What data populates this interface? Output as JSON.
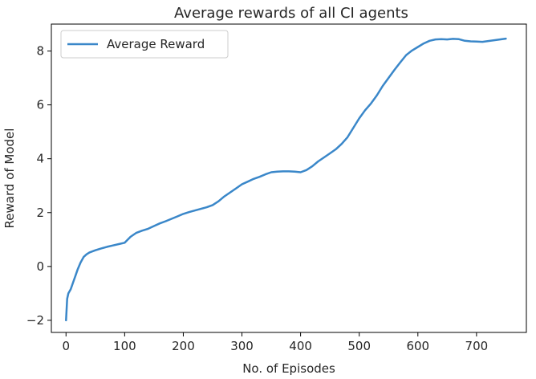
{
  "chart_data": {
    "type": "line",
    "title": "Average rewards of all CI agents",
    "xlabel": "No. of Episodes",
    "ylabel": "Reward of Model",
    "xlim": [
      -25,
      785
    ],
    "ylim": [
      -2.45,
      9.0
    ],
    "xticks": [
      0,
      100,
      200,
      300,
      400,
      500,
      600,
      700
    ],
    "yticks": [
      -2,
      0,
      2,
      4,
      6,
      8
    ],
    "xtick_labels": [
      "0",
      "100",
      "200",
      "300",
      "400",
      "500",
      "600",
      "700"
    ],
    "ytick_labels": [
      "−2",
      "0",
      "2",
      "4",
      "6",
      "8"
    ],
    "grid": false,
    "legend": {
      "position": "top-left",
      "entries": [
        "Average Reward"
      ]
    },
    "series": [
      {
        "name": "Average Reward",
        "color": "#3a87c9",
        "x": [
          0,
          2,
          4,
          8,
          12,
          16,
          20,
          25,
          30,
          35,
          40,
          50,
          60,
          70,
          80,
          90,
          100,
          110,
          120,
          130,
          140,
          150,
          160,
          170,
          180,
          190,
          200,
          210,
          220,
          230,
          240,
          250,
          260,
          270,
          280,
          290,
          300,
          310,
          320,
          330,
          340,
          350,
          360,
          370,
          380,
          390,
          400,
          410,
          420,
          430,
          440,
          450,
          460,
          470,
          480,
          490,
          500,
          510,
          520,
          530,
          540,
          550,
          560,
          570,
          580,
          590,
          600,
          610,
          620,
          630,
          640,
          650,
          660,
          670,
          680,
          690,
          700,
          710,
          720,
          730,
          740,
          750
        ],
        "y": [
          -2.0,
          -1.2,
          -1.0,
          -0.85,
          -0.6,
          -0.35,
          -0.1,
          0.15,
          0.35,
          0.45,
          0.52,
          0.6,
          0.67,
          0.73,
          0.78,
          0.83,
          0.88,
          1.1,
          1.25,
          1.33,
          1.4,
          1.5,
          1.6,
          1.68,
          1.77,
          1.86,
          1.95,
          2.02,
          2.08,
          2.14,
          2.2,
          2.28,
          2.42,
          2.6,
          2.75,
          2.9,
          3.05,
          3.15,
          3.25,
          3.33,
          3.42,
          3.5,
          3.52,
          3.53,
          3.53,
          3.52,
          3.5,
          3.58,
          3.72,
          3.9,
          4.05,
          4.2,
          4.35,
          4.55,
          4.8,
          5.15,
          5.5,
          5.8,
          6.05,
          6.35,
          6.7,
          7.0,
          7.3,
          7.58,
          7.85,
          8.02,
          8.15,
          8.28,
          8.38,
          8.43,
          8.44,
          8.43,
          8.45,
          8.44,
          8.38,
          8.36,
          8.35,
          8.34,
          8.37,
          8.4,
          8.43,
          8.46
        ]
      }
    ]
  }
}
